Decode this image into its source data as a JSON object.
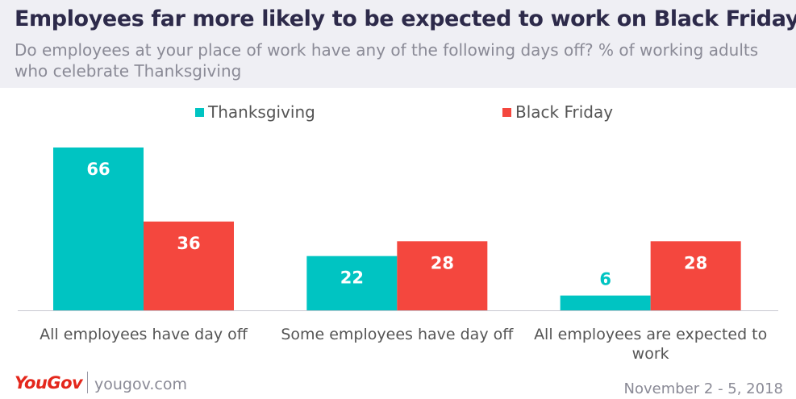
{
  "header": {
    "title": "Employees far more likely to be expected to work on Black Friday",
    "subtitle": "Do employees at your place of work have any of the following days off? % of working adults who celebrate Thanksgiving"
  },
  "chart_data": {
    "type": "bar",
    "categories": [
      "All employees have day off",
      "Some employees have day off",
      "All employees are expected to work"
    ],
    "series": [
      {
        "name": "Thanksgiving",
        "values": [
          66,
          22,
          6
        ],
        "color": "#00c4c2"
      },
      {
        "name": "Black Friday",
        "values": [
          36,
          28,
          28
        ],
        "color": "#f4473e"
      }
    ],
    "ylim": [
      0,
      66
    ],
    "grid": false,
    "legend": "top"
  },
  "footer": {
    "brand": "YouGov",
    "url": "yougov.com",
    "date": "November 2 - 5, 2018"
  },
  "colors": {
    "accent_title": "#2d2a4a",
    "brand": "#e4271c"
  }
}
